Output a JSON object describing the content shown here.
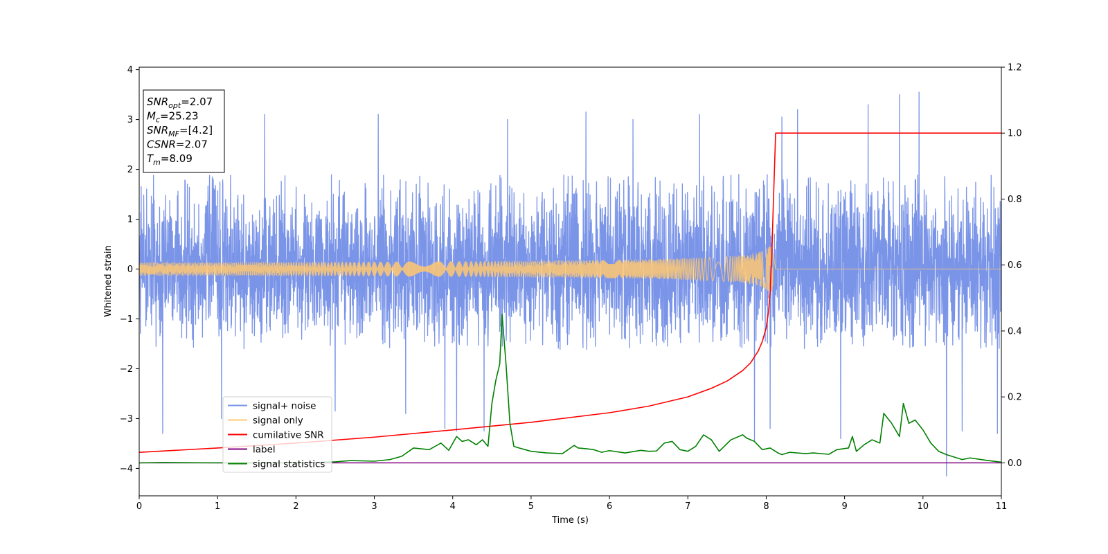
{
  "chart_data": {
    "type": "line",
    "xlabel": "Time (s)",
    "ylabel": "Whitened strain",
    "xlim": [
      0,
      11
    ],
    "ylim_left": [
      -4.55,
      4.05
    ],
    "ylim_right": [
      -0.1,
      1.2
    ],
    "x_ticks": [
      "0",
      "1",
      "2",
      "3",
      "4",
      "5",
      "6",
      "7",
      "8",
      "9",
      "10",
      "11"
    ],
    "y_left_ticks": [
      "−4",
      "−3",
      "−2",
      "−1",
      "0",
      "1",
      "2",
      "3",
      "4"
    ],
    "y_right_ticks": [
      "0.0",
      "0.2",
      "0.4",
      "0.6",
      "0.8",
      "1.0",
      "1.2"
    ],
    "legend_placement": "lower-left",
    "legend": [
      {
        "label": "signal+ noise",
        "color": "#7a94e8"
      },
      {
        "label": "signal only",
        "color": "#ffc870"
      },
      {
        "label": "cumilative SNR",
        "color": "#ff0000"
      },
      {
        "label": "label",
        "color": "#800080"
      },
      {
        "label": "signal statistics",
        "color": "#008000"
      }
    ],
    "info_box": {
      "placement": "top-left",
      "lines": [
        {
          "base": "SNR",
          "sub": "opt",
          "rest": "=2.07"
        },
        {
          "base": "M",
          "sub": "c",
          "rest": "=25.23"
        },
        {
          "base": "SNR",
          "sub": "MF",
          "rest": "=[4.2]"
        },
        {
          "base": "CSNR",
          "sub": "",
          "rest": "=2.07"
        },
        {
          "base": "T",
          "sub": "m",
          "rest": "=8.09"
        }
      ]
    },
    "series": [
      {
        "name": "signal+ noise",
        "axis": "left",
        "color": "#7a94e8",
        "kind": "noise",
        "band": [
          -1.6,
          1.9
        ],
        "peaks": [
          [
            0.3,
            -3.3
          ],
          [
            1.05,
            -3.0
          ],
          [
            1.6,
            3.1
          ],
          [
            2.5,
            -2.85
          ],
          [
            3.05,
            3.1
          ],
          [
            3.4,
            -2.9
          ],
          [
            3.9,
            -3.2
          ],
          [
            4.05,
            -3.25
          ],
          [
            4.4,
            -3.25
          ],
          [
            4.7,
            3.0
          ],
          [
            5.7,
            3.15
          ],
          [
            6.3,
            3.0
          ],
          [
            7.15,
            3.1
          ],
          [
            7.85,
            -3.45
          ],
          [
            8.05,
            -3.2
          ],
          [
            8.2,
            3.05
          ],
          [
            8.4,
            3.2
          ],
          [
            8.95,
            -3.4
          ],
          [
            9.3,
            3.3
          ],
          [
            9.7,
            3.5
          ],
          [
            9.95,
            3.55
          ],
          [
            10.3,
            -4.15
          ],
          [
            10.5,
            -3.25
          ],
          [
            10.95,
            -3.3
          ]
        ]
      },
      {
        "name": "signal only",
        "axis": "left",
        "color": "#ffc870",
        "kind": "chirp",
        "merger_time": 8.09,
        "ringdown_end": 8.12,
        "peak_amplitude": 0.45
      },
      {
        "name": "cumilative SNR",
        "axis": "right",
        "color": "#ff0000",
        "x": [
          0,
          1,
          2,
          3,
          4,
          5,
          6,
          6.5,
          7,
          7.3,
          7.5,
          7.7,
          7.8,
          7.9,
          7.95,
          8.0,
          8.03,
          8.05,
          8.07,
          8.09,
          8.12,
          11
        ],
        "y": [
          0.032,
          0.045,
          0.06,
          0.078,
          0.1,
          0.123,
          0.152,
          0.172,
          0.2,
          0.226,
          0.248,
          0.28,
          0.303,
          0.34,
          0.368,
          0.41,
          0.46,
          0.52,
          0.62,
          0.78,
          1.0,
          1.0
        ]
      },
      {
        "name": "label",
        "axis": "right",
        "color": "#800080",
        "x": [
          0,
          11
        ],
        "y": [
          0,
          0
        ]
      },
      {
        "name": "signal statistics",
        "axis": "right",
        "color": "#008000",
        "x": [
          0,
          0.3,
          1,
          2,
          2.5,
          2.7,
          3.0,
          3.2,
          3.35,
          3.5,
          3.7,
          3.85,
          3.95,
          4.05,
          4.12,
          4.2,
          4.3,
          4.38,
          4.45,
          4.5,
          4.55,
          4.6,
          4.63,
          4.68,
          4.73,
          4.78,
          4.85,
          5.0,
          5.2,
          5.4,
          5.55,
          5.6,
          5.7,
          5.8,
          5.9,
          6.0,
          6.2,
          6.4,
          6.5,
          6.6,
          6.7,
          6.8,
          6.9,
          7.0,
          7.1,
          7.2,
          7.3,
          7.4,
          7.55,
          7.7,
          7.75,
          7.85,
          7.95,
          8.05,
          8.15,
          8.2,
          8.3,
          8.5,
          8.6,
          8.8,
          8.9,
          9.05,
          9.1,
          9.15,
          9.25,
          9.35,
          9.45,
          9.5,
          9.6,
          9.7,
          9.75,
          9.82,
          9.9,
          10.0,
          10.1,
          10.2,
          10.3,
          10.5,
          10.6,
          10.8,
          11.0
        ],
        "y": [
          0.0,
          0.001,
          0.0,
          0.0,
          0.003,
          0.007,
          0.005,
          0.01,
          0.02,
          0.045,
          0.04,
          0.06,
          0.038,
          0.08,
          0.065,
          0.07,
          0.055,
          0.07,
          0.05,
          0.18,
          0.25,
          0.3,
          0.45,
          0.3,
          0.12,
          0.05,
          0.045,
          0.035,
          0.03,
          0.028,
          0.053,
          0.045,
          0.043,
          0.04,
          0.032,
          0.037,
          0.03,
          0.038,
          0.035,
          0.036,
          0.06,
          0.065,
          0.04,
          0.035,
          0.05,
          0.085,
          0.07,
          0.035,
          0.07,
          0.085,
          0.075,
          0.065,
          0.04,
          0.045,
          0.03,
          0.025,
          0.032,
          0.028,
          0.03,
          0.026,
          0.04,
          0.045,
          0.08,
          0.035,
          0.055,
          0.07,
          0.06,
          0.15,
          0.12,
          0.08,
          0.18,
          0.12,
          0.13,
          0.1,
          0.06,
          0.035,
          0.025,
          0.01,
          0.015,
          0.008,
          0.002
        ]
      }
    ]
  }
}
